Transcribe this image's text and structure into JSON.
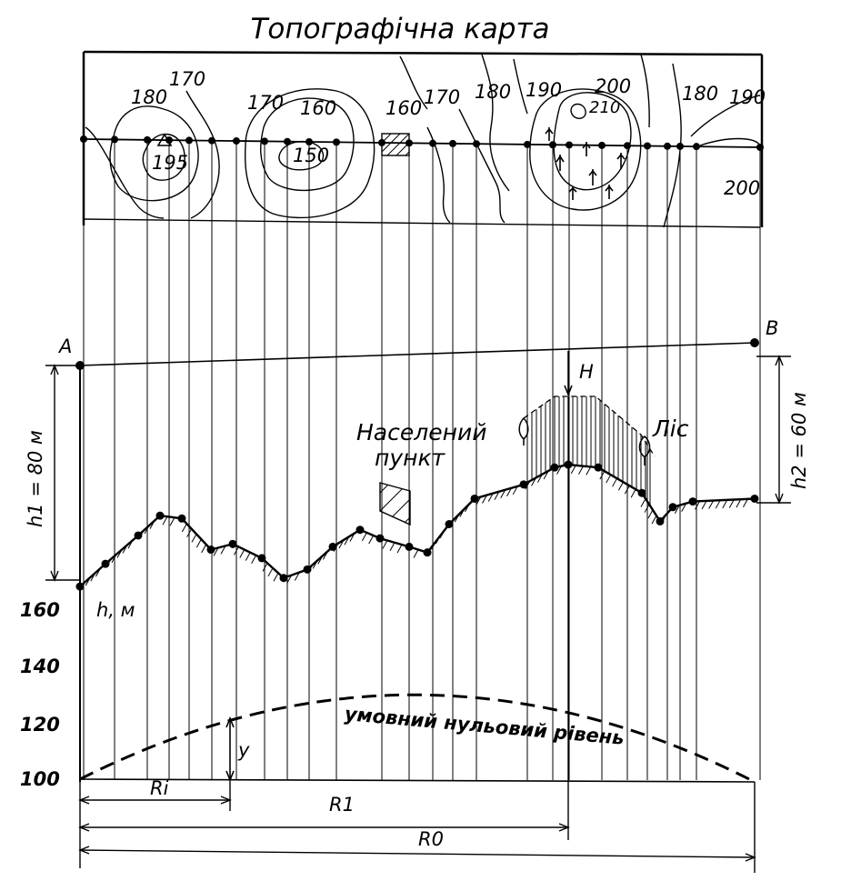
{
  "title": "Топографічна карта",
  "contour_labels": [
    "180",
    "170",
    "195",
    "170",
    "160",
    "150",
    "160",
    "170",
    "180",
    "190",
    "200",
    "210",
    "180",
    "190",
    "200"
  ],
  "points": {
    "a": "A",
    "b": "B"
  },
  "heights": {
    "h1": "h1 = 80 м",
    "h2": "h2 = 60 м",
    "axis_label": "h, м",
    "h_label": "H"
  },
  "annotations": {
    "settlement_line1": "Населений",
    "settlement_line2": "пункт",
    "forest": "Ліс",
    "zero_level": "умовний нульовий рівень"
  },
  "y_axis": {
    "ticks": [
      "160",
      "140",
      "120",
      "100"
    ]
  },
  "distances": {
    "ri": "Ri",
    "r1": "R1",
    "r0": "R0",
    "y": "y"
  },
  "profile_heights_m": [
    168,
    176,
    186,
    193,
    192,
    181,
    183,
    178,
    171,
    174,
    182,
    188,
    185,
    182,
    180,
    190,
    199,
    204,
    210,
    211,
    210,
    201,
    191,
    196,
    198,
    199
  ]
}
